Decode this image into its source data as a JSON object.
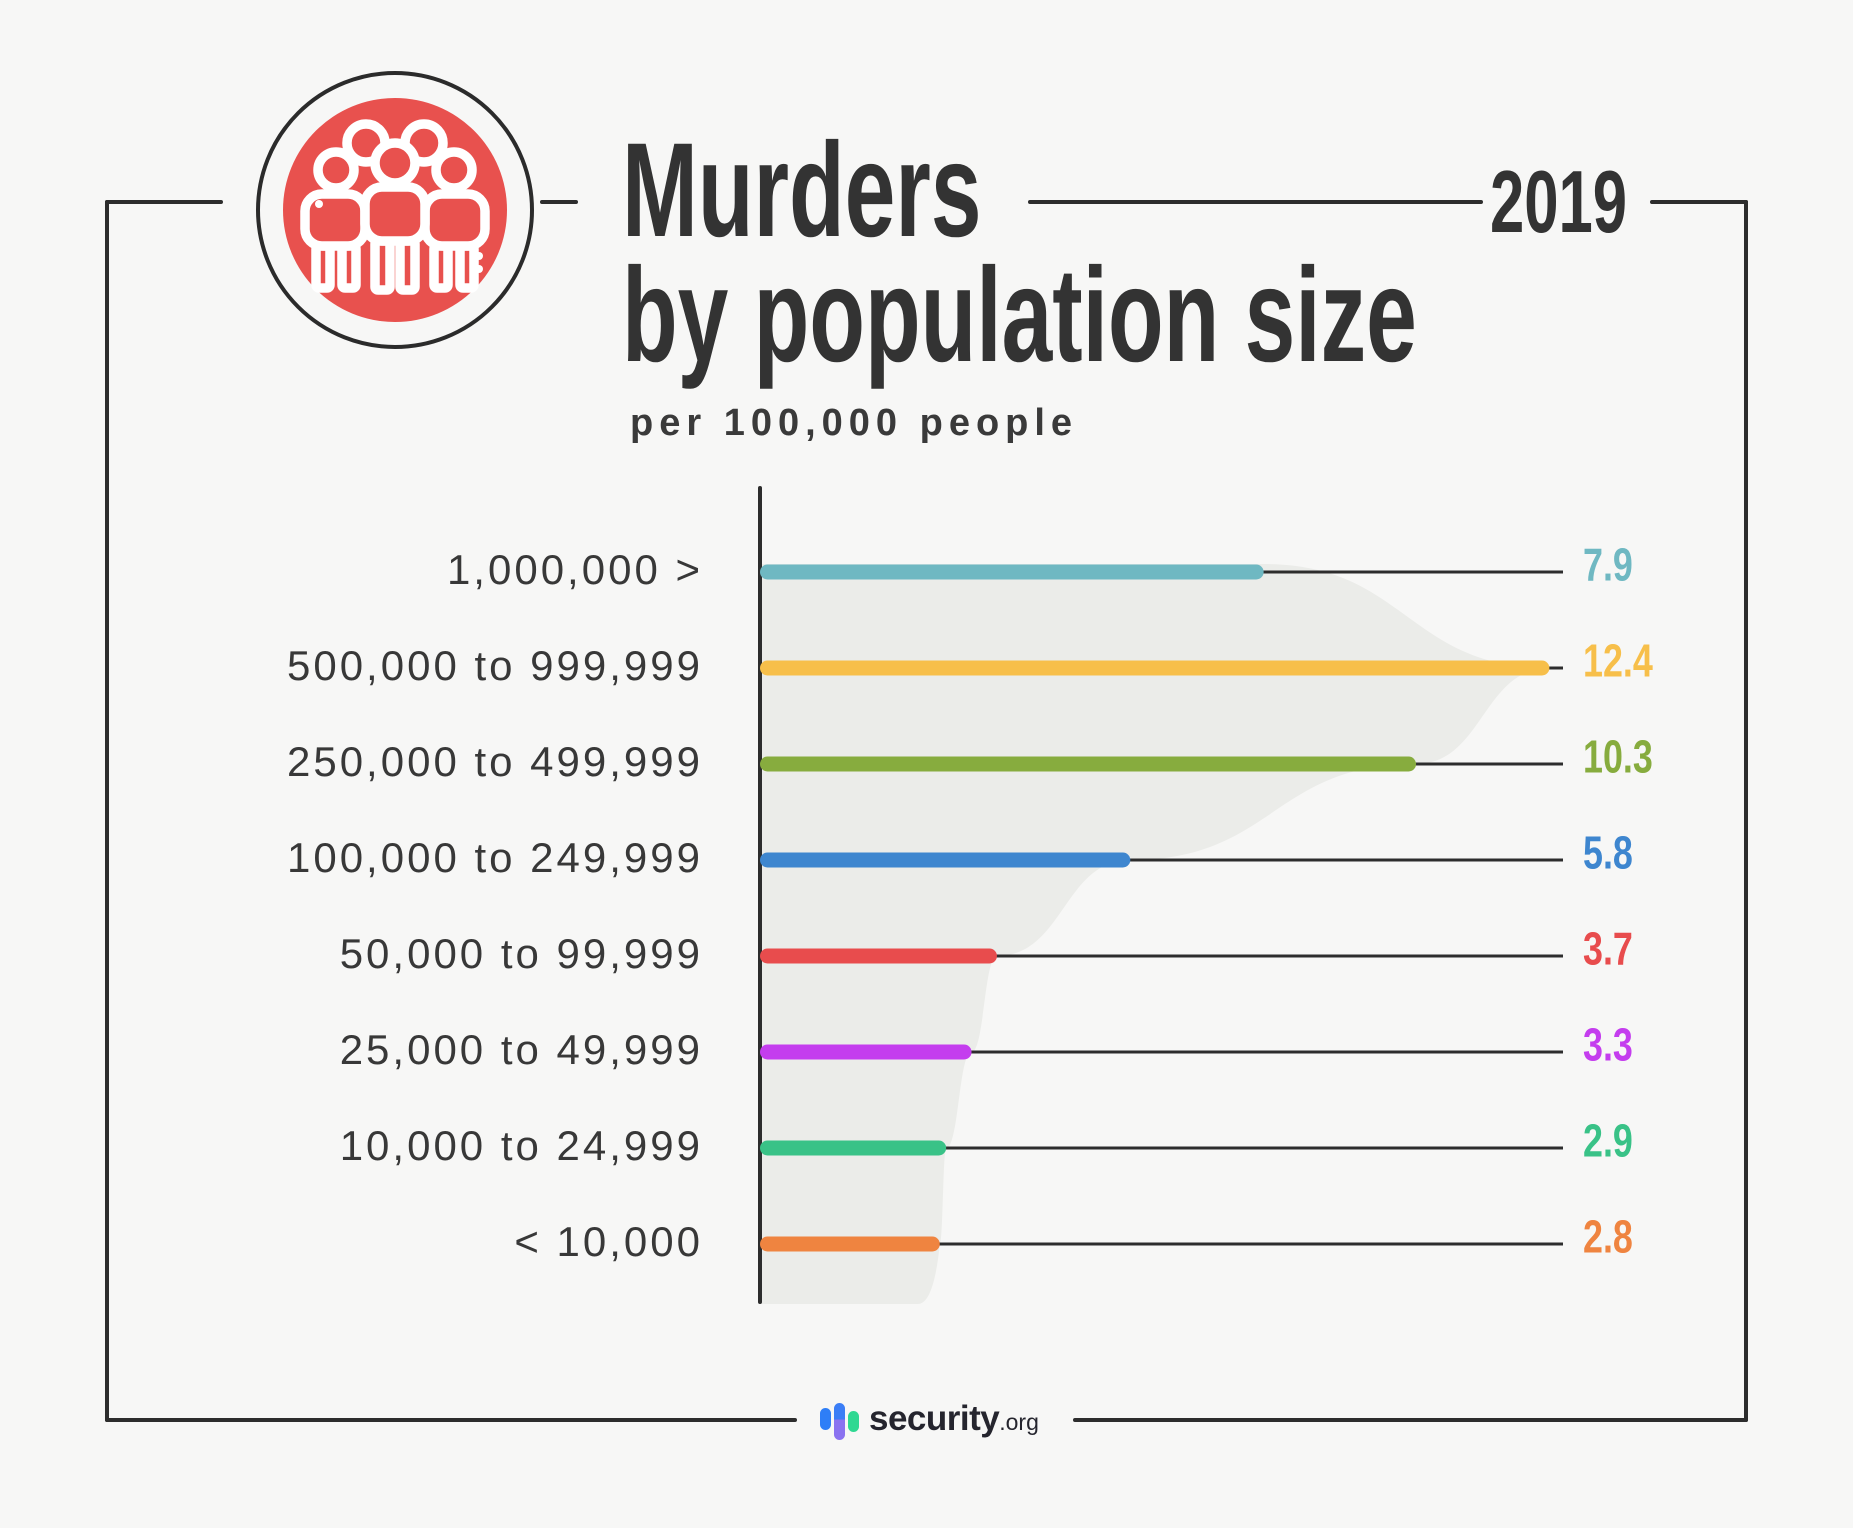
{
  "header": {
    "title_line1": "Murders",
    "title_line2": "by population size",
    "subtitle": "per 100,000 people",
    "year": "2019"
  },
  "footer": {
    "brand": "security",
    "brand_suffix": ".org"
  },
  "colors": {
    "background": "#f7f7f6",
    "frame": "#2d2d2d",
    "title_text": "#333333",
    "label_text": "#383838",
    "funnel_fill": "#ebece9",
    "icon_circle_red": "#e8514e",
    "logo_blue": "#2e7ef7",
    "logo_purple": "#8a72f0",
    "logo_green": "#2fd892",
    "logo_text": "#25252e"
  },
  "chart_data": {
    "type": "bar",
    "orientation": "horizontal",
    "title": "Murders by population size",
    "subtitle": "per 100,000 people",
    "year": "2019",
    "unit": "murders per 100,000 people",
    "xlim": [
      0,
      12.4
    ],
    "grid": false,
    "legend": "none",
    "categories": [
      "1,000,000 >",
      "500,000 to 999,999",
      "250,000 to 499,999",
      "100,000 to 249,999",
      "50,000 to 99,999",
      "25,000 to 49,999",
      "10,000 to 24,999",
      "< 10,000"
    ],
    "values": [
      7.9,
      12.4,
      10.3,
      5.8,
      3.7,
      3.3,
      2.9,
      2.8
    ],
    "value_labels": [
      "7.9",
      "12.4",
      "10.3",
      "5.8",
      "3.7",
      "3.3",
      "2.9",
      "2.8"
    ],
    "bar_colors": [
      "#6fb8c2",
      "#f7bf4a",
      "#87ac3e",
      "#3e86cf",
      "#e84c4d",
      "#c43dee",
      "#39c287",
      "#ef8440"
    ]
  }
}
